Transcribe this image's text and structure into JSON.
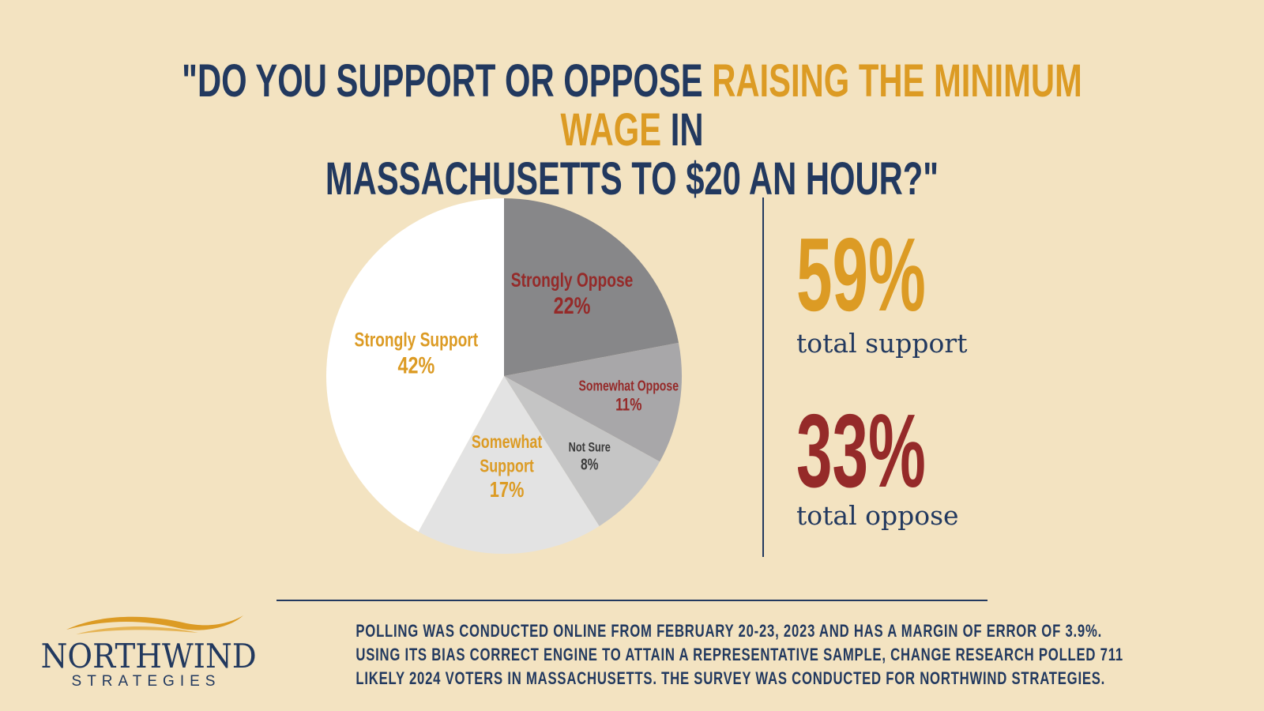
{
  "title": {
    "before": "\"DO YOU SUPPORT OR OPPOSE ",
    "highlight": "RAISING THE MINIMUM WAGE",
    "after": " IN",
    "line2": "MASSACHUSETTS TO $20 AN HOUR?\""
  },
  "colors": {
    "background": "#f3e3c1",
    "navy": "#22395f",
    "gold": "#dc9b24",
    "red": "#952a29",
    "dark_gray_text": "#3b3b3b"
  },
  "chart_data": {
    "type": "pie",
    "start": "12 o'clock, clockwise",
    "slices": [
      {
        "label": "Strongly Oppose",
        "value": 22,
        "display": "22%",
        "color": "#878789",
        "text_color": "#952a29"
      },
      {
        "label": "Somewhat Oppose",
        "value": 11,
        "display": "11%",
        "color": "#a8a7a9",
        "text_color": "#952a29"
      },
      {
        "label": "Not Sure",
        "value": 8,
        "display": "8%",
        "color": "#c5c5c5",
        "text_color": "#3b3b3b"
      },
      {
        "label": "Somewhat Support",
        "value": 17,
        "display": "17%",
        "color": "#e3e3e3",
        "text_color": "#dc9b24"
      },
      {
        "label": "Strongly Support",
        "value": 42,
        "display": "42%",
        "color": "#ffffff",
        "text_color": "#dc9b24"
      }
    ]
  },
  "summary": {
    "support_value": "59%",
    "support_label": "total support",
    "oppose_value": "33%",
    "oppose_label": "total oppose"
  },
  "footnote": {
    "line1": "POLLING WAS CONDUCTED ONLINE FROM FEBRUARY 20-23, 2023 AND HAS A MARGIN OF ERROR OF 3.9%.",
    "line2": "USING ITS BIAS CORRECT ENGINE TO ATTAIN A REPRESENTATIVE SAMPLE, CHANGE RESEARCH POLLED 711",
    "line3": "LIKELY 2024 VOTERS IN MASSACHUSETTS. THE SURVEY WAS CONDUCTED FOR NORTHWIND STRATEGIES."
  },
  "logo": {
    "name": "NORTHWIND",
    "tagline": "STRATEGIES"
  }
}
